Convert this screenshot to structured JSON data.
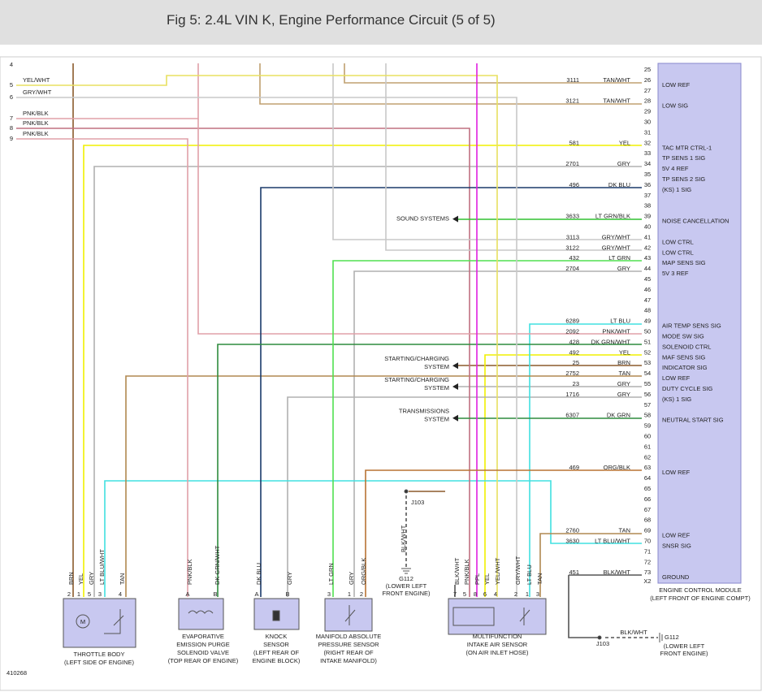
{
  "header": {
    "title": "Fig 5: 2.4L VIN K, Engine Performance Circuit (5 of 5)"
  },
  "ecm": {
    "name": "ENGINE CONTROL MODULE",
    "location": "(LEFT FRONT OF ENGINE COMPT)",
    "connector": "X2",
    "pins": [
      {
        "pin": "25"
      },
      {
        "pin": "26",
        "circuit": "3111",
        "color": "TAN/WHT",
        "function": "LOW REF"
      },
      {
        "pin": "27"
      },
      {
        "pin": "28",
        "circuit": "3121",
        "color": "TAN/WHT",
        "function": "LOW SIG"
      },
      {
        "pin": "29"
      },
      {
        "pin": "30"
      },
      {
        "pin": "31"
      },
      {
        "pin": "32",
        "circuit": "581",
        "color": "YEL",
        "function": "TAC MTR CTRL-1"
      },
      {
        "pin": "33",
        "function": "TP SENS 1 SIG"
      },
      {
        "pin": "34",
        "circuit": "2701",
        "color": "GRY",
        "function": "5V 4 REF"
      },
      {
        "pin": "35",
        "function": "TP SENS 2 SIG"
      },
      {
        "pin": "36",
        "circuit": "496",
        "color": "DK BLU",
        "function": "(KS) 1 SIG"
      },
      {
        "pin": "37"
      },
      {
        "pin": "38"
      },
      {
        "pin": "39",
        "circuit": "3633",
        "color": "LT GRN/BLK",
        "function": "NOISE CANCELLATION"
      },
      {
        "pin": "40"
      },
      {
        "pin": "41",
        "circuit": "3113",
        "color": "GRY/WHT",
        "function": "LOW CTRL"
      },
      {
        "pin": "42",
        "circuit": "3122",
        "color": "GRY/WHT",
        "function": "LOW CTRL"
      },
      {
        "pin": "43",
        "circuit": "432",
        "color": "LT GRN",
        "function": "MAP SENS SIG"
      },
      {
        "pin": "44",
        "circuit": "2704",
        "color": "GRY",
        "function": "5V 3 REF"
      },
      {
        "pin": "45"
      },
      {
        "pin": "46"
      },
      {
        "pin": "47"
      },
      {
        "pin": "48"
      },
      {
        "pin": "49",
        "circuit": "6289",
        "color": "LT BLU",
        "function": "AIR TEMP SENS SIG"
      },
      {
        "pin": "50",
        "circuit": "2092",
        "color": "PNK/WHT",
        "function": "MODE SW SIG"
      },
      {
        "pin": "51",
        "circuit": "428",
        "color": "DK GRN/WHT",
        "function": "SOLENOID CTRL"
      },
      {
        "pin": "52",
        "circuit": "492",
        "color": "YEL",
        "function": "MAF SENS SIG"
      },
      {
        "pin": "53",
        "circuit": "25",
        "color": "BRN",
        "function": "INDICATOR SIG"
      },
      {
        "pin": "54",
        "circuit": "2752",
        "color": "TAN",
        "function": "LOW REF"
      },
      {
        "pin": "55",
        "circuit": "23",
        "color": "GRY",
        "function": "DUTY CYCLE SIG"
      },
      {
        "pin": "56",
        "circuit": "1716",
        "color": "GRY",
        "function": "(KS) 1 SIG"
      },
      {
        "pin": "57"
      },
      {
        "pin": "58",
        "circuit": "6307",
        "color": "DK GRN",
        "function": "NEUTRAL START SIG"
      },
      {
        "pin": "59"
      },
      {
        "pin": "60"
      },
      {
        "pin": "61"
      },
      {
        "pin": "62"
      },
      {
        "pin": "63",
        "circuit": "469",
        "color": "ORG/BLK",
        "function": "LOW REF"
      },
      {
        "pin": "64"
      },
      {
        "pin": "65"
      },
      {
        "pin": "66"
      },
      {
        "pin": "67"
      },
      {
        "pin": "68"
      },
      {
        "pin": "69",
        "circuit": "2760",
        "color": "TAN",
        "function": "LOW REF"
      },
      {
        "pin": "70",
        "circuit": "3630",
        "color": "LT BLU/WHT",
        "function": "SNSR SIG"
      },
      {
        "pin": "71"
      },
      {
        "pin": "72"
      },
      {
        "pin": "73",
        "circuit": "451",
        "color": "BLK/WHT",
        "function": "GROUND"
      }
    ]
  },
  "left_pins": [
    {
      "pin": "4"
    },
    {
      "pin": "5",
      "color": "YEL/WHT"
    },
    {
      "pin": "6",
      "color": "GRY/WHT"
    },
    {
      "pin": "7",
      "color": "PNK/BLK"
    },
    {
      "pin": "8",
      "color": "PNK/BLK"
    },
    {
      "pin": "9",
      "color": "PNK/BLK"
    }
  ],
  "arrows": [
    {
      "lines": [
        "SOUND SYSTEMS"
      ]
    },
    {
      "lines": [
        "STARTING/CHARGING",
        "SYSTEM"
      ]
    },
    {
      "lines": [
        "STARTING/CHARGING",
        "SYSTEM"
      ]
    },
    {
      "lines": [
        "TRANSMISSIONS",
        "SYSTEM"
      ]
    }
  ],
  "components": [
    {
      "lines": [
        "THROTTLE BODY",
        "(LEFT SIDE OF ENGINE)"
      ],
      "pins": [
        {
          "pin": "2",
          "color": "BRN"
        },
        {
          "pin": "1",
          "color": "YEL"
        },
        {
          "pin": "5",
          "color": "GRY"
        },
        {
          "pin": "3",
          "color": "LT BLU/WHT"
        },
        {
          "pin": "4",
          "color": "TAN"
        }
      ]
    },
    {
      "lines": [
        "EVAPORATIVE",
        "EMISSION PURGE",
        "SOLENOID VALVE",
        "(TOP REAR OF ENGINE)"
      ],
      "pins": [
        {
          "pin": "A",
          "color": "PNK/BLK"
        },
        {
          "pin": "B",
          "color": "DK GRN/WHT"
        }
      ]
    },
    {
      "lines": [
        "KNOCK",
        "SENSOR",
        "(LEFT REAR OF",
        "ENGINE BLOCK)"
      ],
      "pins": [
        {
          "pin": "A",
          "color": "DK BLU"
        },
        {
          "pin": "B",
          "color": "GRY"
        }
      ]
    },
    {
      "lines": [
        "MANIFOLD ABSOLUTE",
        "PRESSURE SENSOR",
        "(RIGHT REAR OF",
        "INTAKE MANIFOLD)"
      ],
      "pins": [
        {
          "pin": "3",
          "color": "LT GRN"
        },
        {
          "pin": "1",
          "color": "GRY"
        },
        {
          "pin": "2",
          "color": "ORG/BLK"
        }
      ]
    },
    {
      "lines": [
        "MULTIFUNCTION",
        "INTAKE AIR SENSOR",
        "(ON AIR INLET HOSE)"
      ],
      "pins": [
        {
          "pin": "7",
          "color": "BLK/WHT"
        },
        {
          "pin": "5",
          "color": "PNK/BLK"
        },
        {
          "pin": "8",
          "color": "PPL"
        },
        {
          "pin": "6",
          "color": "YEL"
        },
        {
          "pin": "4",
          "color": "YEL/WHT"
        },
        {
          "pin": "2",
          "color": "GRY/WHT"
        },
        {
          "pin": "1",
          "color": "LT BLU"
        },
        {
          "pin": "3",
          "color": "TAN"
        }
      ]
    }
  ],
  "grounds": [
    {
      "splice": "J103",
      "wire": "BLK/WHT",
      "ground": "G112",
      "lines": [
        "(LOWER LEFT",
        "FRONT ENGINE)"
      ]
    },
    {
      "splice": "J103",
      "wire": "BLK/WHT",
      "ground": "G112",
      "lines": [
        "(LOWER LEFT",
        "FRONT ENGINE)"
      ]
    }
  ],
  "figure_id": "410268"
}
